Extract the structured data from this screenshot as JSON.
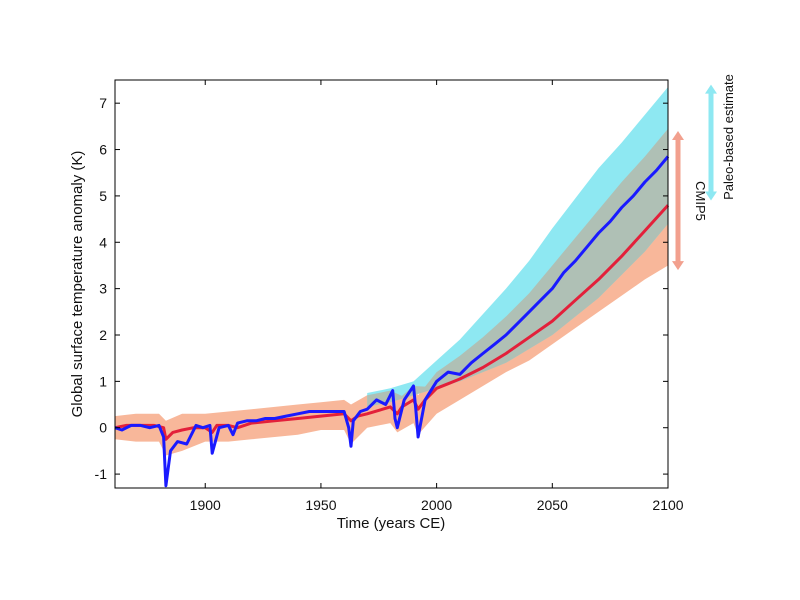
{
  "chart_data": {
    "type": "line",
    "title": "",
    "xlabel": "Time (years CE)",
    "ylabel": "Global surface temperature anomaly (K)",
    "xlim": [
      1861,
      2100
    ],
    "ylim": [
      -1.3,
      7.5
    ],
    "xticks": [
      1900,
      1950,
      2000,
      2050,
      2100
    ],
    "yticks": [
      -1,
      0,
      1,
      2,
      3,
      4,
      5,
      6,
      7
    ],
    "grid": false,
    "colors": {
      "paleo_line": "#1a1aff",
      "cmip5_line": "#e3203a",
      "paleo_band": "#8ee8f2",
      "cmip5_band": "#f8b79a",
      "overlap_band": "#b9b3a0",
      "paleo_arrow": "#8ee8f2",
      "cmip5_arrow": "#f2a08e"
    },
    "series": [
      {
        "name": "Paleo-based estimate",
        "x": [
          1861,
          1864,
          1868,
          1872,
          1876,
          1880,
          1882,
          1883,
          1885,
          1888,
          1892,
          1896,
          1899,
          1902,
          1903,
          1906,
          1910,
          1912,
          1914,
          1918,
          1922,
          1926,
          1930,
          1935,
          1940,
          1945,
          1950,
          1955,
          1960,
          1962,
          1963,
          1964,
          1967,
          1970,
          1974,
          1978,
          1981,
          1982,
          1983,
          1986,
          1990,
          1991,
          1992,
          1995,
          2000,
          2005,
          2010,
          2015,
          2020,
          2025,
          2030,
          2035,
          2040,
          2045,
          2050,
          2055,
          2060,
          2065,
          2070,
          2075,
          2080,
          2085,
          2090,
          2095,
          2100
        ],
        "y": [
          0,
          -0.05,
          0.05,
          0.05,
          0.0,
          0.05,
          -0.2,
          -1.25,
          -0.5,
          -0.3,
          -0.35,
          0.05,
          0.0,
          0.05,
          -0.55,
          0.0,
          0.05,
          -0.15,
          0.1,
          0.15,
          0.15,
          0.2,
          0.2,
          0.25,
          0.3,
          0.35,
          0.35,
          0.35,
          0.35,
          0.0,
          -0.4,
          0.15,
          0.35,
          0.4,
          0.6,
          0.5,
          0.8,
          0.2,
          0.0,
          0.6,
          0.9,
          0.4,
          -0.2,
          0.6,
          1.0,
          1.2,
          1.15,
          1.4,
          1.6,
          1.8,
          2.0,
          2.25,
          2.5,
          2.75,
          3.0,
          3.35,
          3.6,
          3.9,
          4.2,
          4.45,
          4.75,
          5.0,
          5.3,
          5.55,
          5.85
        ]
      },
      {
        "name": "CMIP5",
        "x": [
          1861,
          1866,
          1872,
          1878,
          1882,
          1883,
          1886,
          1890,
          1895,
          1900,
          1903,
          1905,
          1910,
          1914,
          1920,
          1930,
          1940,
          1950,
          1960,
          1963,
          1966,
          1970,
          1980,
          1983,
          1985,
          1990,
          1992,
          1995,
          2000,
          2005,
          2010,
          2020,
          2030,
          2040,
          2050,
          2060,
          2070,
          2080,
          2090,
          2100
        ],
        "y": [
          0.0,
          0.05,
          0.05,
          0.05,
          0.0,
          -0.25,
          -0.1,
          -0.05,
          0.0,
          0.0,
          -0.1,
          0.05,
          0.05,
          0.0,
          0.1,
          0.15,
          0.2,
          0.25,
          0.3,
          0.15,
          0.25,
          0.3,
          0.45,
          0.3,
          0.45,
          0.6,
          0.4,
          0.6,
          0.85,
          0.95,
          1.05,
          1.3,
          1.6,
          1.95,
          2.3,
          2.75,
          3.2,
          3.7,
          4.25,
          4.8
        ]
      }
    ],
    "bands": [
      {
        "name": "CMIP5 range",
        "x": [
          1861,
          1870,
          1880,
          1883,
          1890,
          1900,
          1910,
          1920,
          1930,
          1940,
          1950,
          1960,
          1963,
          1970,
          1980,
          1983,
          1990,
          1992,
          2000,
          2010,
          2020,
          2030,
          2040,
          2050,
          2060,
          2070,
          2080,
          2090,
          2100
        ],
        "lower": [
          -0.25,
          -0.3,
          -0.3,
          -0.6,
          -0.5,
          -0.3,
          -0.3,
          -0.25,
          -0.2,
          -0.15,
          -0.05,
          -0.05,
          -0.35,
          0.0,
          0.1,
          -0.1,
          0.1,
          -0.15,
          0.3,
          0.6,
          0.9,
          1.2,
          1.45,
          1.8,
          2.15,
          2.5,
          2.85,
          3.2,
          3.5
        ],
        "upper": [
          0.25,
          0.3,
          0.3,
          0.15,
          0.3,
          0.3,
          0.35,
          0.4,
          0.45,
          0.5,
          0.55,
          0.6,
          0.5,
          0.7,
          0.8,
          0.6,
          0.9,
          0.7,
          1.2,
          1.55,
          1.95,
          2.4,
          2.9,
          3.5,
          4.1,
          4.7,
          5.3,
          5.85,
          6.45
        ]
      },
      {
        "name": "Paleo-based range",
        "x": [
          1970,
          1980,
          1990,
          2000,
          2010,
          2020,
          2030,
          2040,
          2050,
          2060,
          2070,
          2080,
          2090,
          2100
        ],
        "lower": [
          0.45,
          0.55,
          0.7,
          0.85,
          1.0,
          1.2,
          1.4,
          1.7,
          2.0,
          2.4,
          2.8,
          3.3,
          3.8,
          4.4
        ],
        "upper": [
          0.75,
          0.85,
          1.0,
          1.45,
          1.9,
          2.45,
          3.0,
          3.6,
          4.3,
          4.95,
          5.6,
          6.15,
          6.75,
          7.35
        ]
      }
    ],
    "range_arrows": [
      {
        "label": "Paleo-based estimate",
        "from": 4.9,
        "to": 7.4
      },
      {
        "label": "CMIP5",
        "from": 3.4,
        "to": 6.4
      }
    ]
  }
}
